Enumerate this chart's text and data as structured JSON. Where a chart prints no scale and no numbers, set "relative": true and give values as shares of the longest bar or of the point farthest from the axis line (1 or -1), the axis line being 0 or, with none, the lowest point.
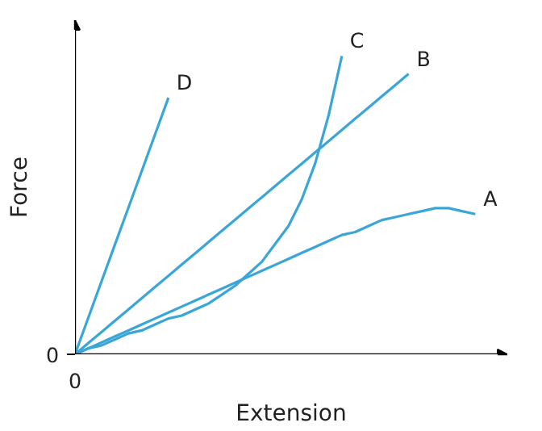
{
  "chart_data": {
    "type": "line",
    "relative": true,
    "xlabel": "Extension",
    "ylabel": "Force",
    "annotations": [
      "0",
      "0"
    ],
    "grid": false,
    "legend": false,
    "marker": "none",
    "line_style": "solid",
    "categories": [
      null,
      null,
      null,
      null,
      null,
      null,
      null,
      null,
      null,
      null,
      null,
      null,
      null,
      null,
      null,
      null,
      null,
      null,
      null,
      null,
      null,
      null,
      null,
      null,
      null,
      null,
      null,
      null,
      null,
      null,
      null
    ],
    "series": [
      {
        "name": "A",
        "color": "#3aa6d8",
        "values": [
          0,
          0.02,
          0.04,
          0.06,
          0.08,
          0.1,
          0.12,
          0.14,
          0.16,
          0.18,
          0.2,
          0.22,
          0.24,
          0.26,
          0.28,
          0.3,
          0.32,
          0.34,
          0.36,
          0.38,
          0.4,
          0.41,
          0.43,
          0.45,
          0.46,
          0.47,
          0.48,
          0.49,
          0.49,
          0.48,
          0.47
        ]
      },
      {
        "name": "B",
        "color": "#3aa6d8",
        "values": [
          0,
          0.038,
          0.075,
          0.113,
          0.15,
          0.188,
          0.226,
          0.263,
          0.301,
          0.338,
          0.376,
          0.414,
          0.451,
          0.489,
          0.526,
          0.564,
          0.602,
          0.639,
          0.677,
          0.714,
          0.752,
          0.79,
          0.827,
          0.865,
          0.902,
          0.94,
          null,
          null,
          null,
          null,
          null
        ]
      },
      {
        "name": "C",
        "color": "#3aa6d8",
        "values": [
          0,
          0.02,
          0.03,
          0.05,
          0.07,
          0.08,
          0.1,
          0.12,
          0.13,
          0.15,
          0.17,
          0.2,
          0.23,
          0.27,
          0.31,
          0.37,
          0.43,
          0.52,
          0.64,
          0.8,
          1.0,
          null,
          null,
          null,
          null,
          null,
          null,
          null,
          null,
          null,
          null
        ]
      },
      {
        "name": "D",
        "color": "#3aa6d8",
        "values": [
          0,
          0.123,
          0.246,
          0.369,
          0.491,
          0.614,
          0.737,
          0.86,
          null,
          null,
          null,
          null,
          null,
          null,
          null,
          null,
          null,
          null,
          null,
          null,
          null,
          null,
          null,
          null,
          null,
          null,
          null,
          null,
          null,
          null,
          null
        ]
      }
    ]
  }
}
